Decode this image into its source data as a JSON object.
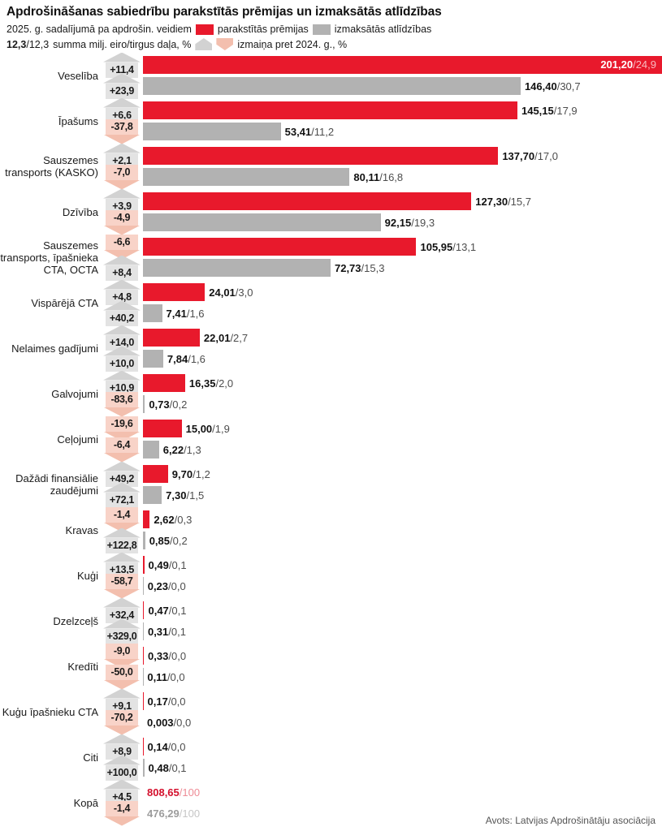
{
  "header": {
    "title": "Apdrošināšanas sabiedrību parakstītās prēmijas un izmaksātās atlīdzības",
    "subtitle": "2025. g. sadalījumā pa apdrošin. veidiem",
    "legend_premiums": "parakstītās prēmijas",
    "legend_claims": "izmaksātās atlīdzības",
    "key_bold": "12,3",
    "key_rest": "/12,3",
    "key_label": "summa milj. eiro/tirgus daļa, %",
    "change_label": "izmaiņa pret 2024. g., %"
  },
  "footer": {
    "source": "Avots: Latvijas Apdrošinātāju asociācija"
  },
  "colors": {
    "premium": "#e8192c",
    "claim": "#b2b2b2",
    "badge_up": "#e3e3e3",
    "badge_up_head": "#d2d2d2",
    "badge_down": "#f8d3c8",
    "badge_down_head": "#f3bfae",
    "total_red": "#d40f2c",
    "total_red_light": "#ee8c96",
    "total_gray": "#9c9c9c",
    "total_gray_light": "#c6c6c6"
  },
  "chart_data": {
    "type": "bar",
    "orientation": "horizontal",
    "title": "Apdrošināšanas sabiedrību parakstītās prēmijas un izmaksātās atlīdzības",
    "subtitle": "2025. g. sadalījumā pa apdrošin. veidiem",
    "unit": "summa milj. eiro / tirgus daļa %, izmaiņa pret 2024. g. %",
    "series_names": [
      "parakstītās prēmijas",
      "izmaksātās atlīdzības"
    ],
    "legend_position": "top",
    "grid": false,
    "max_value": 201.2,
    "source": "Avots: Latvijas Apdrošinātāju asociācija",
    "groups": [
      {
        "category": "Veselība",
        "rows": [
          {
            "series": "premiums",
            "change": "+11,4",
            "direction": "up",
            "value": 201.2,
            "amount": "201,20",
            "share": "24,9",
            "inside": true
          },
          {
            "series": "claims",
            "change": "+23,9",
            "direction": "up",
            "value": 146.4,
            "amount": "146,40",
            "share": "30,7"
          }
        ]
      },
      {
        "category": "Īpašums",
        "rows": [
          {
            "series": "premiums",
            "change": "+6,6",
            "direction": "up",
            "value": 145.15,
            "amount": "145,15",
            "share": "17,9"
          },
          {
            "series": "claims",
            "change": "-37,8",
            "direction": "down",
            "value": 53.41,
            "amount": "53,41",
            "share": "11,2"
          }
        ]
      },
      {
        "category": "Sauszemes transports (KASKO)",
        "rows": [
          {
            "series": "premiums",
            "change": "+2,1",
            "direction": "up",
            "value": 137.7,
            "amount": "137,70",
            "share": "17,0"
          },
          {
            "series": "claims",
            "change": "-7,0",
            "direction": "down",
            "value": 80.11,
            "amount": "80,11",
            "share": "16,8"
          }
        ]
      },
      {
        "category": "Dzīvība",
        "rows": [
          {
            "series": "premiums",
            "change": "+3,9",
            "direction": "up",
            "value": 127.3,
            "amount": "127,30",
            "share": "15,7"
          },
          {
            "series": "claims",
            "change": "-4,9",
            "direction": "down",
            "value": 92.15,
            "amount": "92,15",
            "share": "19,3"
          }
        ]
      },
      {
        "category": "Sauszemes transports, īpašnieka CTA, OCTA",
        "rows": [
          {
            "series": "premiums",
            "change": "-6,6",
            "direction": "down",
            "value": 105.95,
            "amount": "105,95",
            "share": "13,1"
          },
          {
            "series": "claims",
            "change": "+8,4",
            "direction": "up",
            "value": 72.73,
            "amount": "72,73",
            "share": "15,3"
          }
        ]
      },
      {
        "category": "Vispārējā CTA",
        "rows": [
          {
            "series": "premiums",
            "change": "+4,8",
            "direction": "up",
            "value": 24.01,
            "amount": "24,01",
            "share": "3,0"
          },
          {
            "series": "claims",
            "change": "+40,2",
            "direction": "up",
            "value": 7.41,
            "amount": "7,41",
            "share": "1,6"
          }
        ]
      },
      {
        "category": "Nelaimes gadījumi",
        "rows": [
          {
            "series": "premiums",
            "change": "+14,0",
            "direction": "up",
            "value": 22.01,
            "amount": "22,01",
            "share": "2,7"
          },
          {
            "series": "claims",
            "change": "+10,0",
            "direction": "up",
            "value": 7.84,
            "amount": "7,84",
            "share": "1,6"
          }
        ]
      },
      {
        "category": "Galvojumi",
        "rows": [
          {
            "series": "premiums",
            "change": "+10,9",
            "direction": "up",
            "value": 16.35,
            "amount": "16,35",
            "share": "2,0"
          },
          {
            "series": "claims",
            "change": "-83,6",
            "direction": "down",
            "value": 0.73,
            "amount": "0,73",
            "share": "0,2"
          }
        ]
      },
      {
        "category": "Ceļojumi",
        "rows": [
          {
            "series": "premiums",
            "change": "-19,6",
            "direction": "down",
            "value": 15.0,
            "amount": "15,00",
            "share": "1,9"
          },
          {
            "series": "claims",
            "change": "-6,4",
            "direction": "down",
            "value": 6.22,
            "amount": "6,22",
            "share": "1,3"
          }
        ]
      },
      {
        "category": "Dažādi finansiālie zaudējumi",
        "rows": [
          {
            "series": "premiums",
            "change": "+49,2",
            "direction": "up",
            "value": 9.7,
            "amount": "9,70",
            "share": "1,2"
          },
          {
            "series": "claims",
            "change": "+72,1",
            "direction": "up",
            "value": 7.3,
            "amount": "7,30",
            "share": "1,5"
          }
        ]
      },
      {
        "category": "Kravas",
        "rows": [
          {
            "series": "premiums",
            "change": "-1,4",
            "direction": "down",
            "value": 2.62,
            "amount": "2,62",
            "share": "0,3"
          },
          {
            "series": "claims",
            "change": "+122,8",
            "direction": "up",
            "value": 0.85,
            "amount": "0,85",
            "share": "0,2"
          }
        ]
      },
      {
        "category": "Kuģi",
        "rows": [
          {
            "series": "premiums",
            "change": "+13,5",
            "direction": "up",
            "value": 0.49,
            "amount": "0,49",
            "share": "0,1"
          },
          {
            "series": "claims",
            "change": "-58,7",
            "direction": "down",
            "value": 0.23,
            "amount": "0,23",
            "share": "0,0"
          }
        ]
      },
      {
        "category": "Dzelzceļš",
        "rows": [
          {
            "series": "premiums",
            "change": "+32,4",
            "direction": "up",
            "value": 0.47,
            "amount": "0,47",
            "share": "0,1"
          },
          {
            "series": "claims",
            "change": "+329,0",
            "direction": "up",
            "value": 0.31,
            "amount": "0,31",
            "share": "0,1"
          }
        ]
      },
      {
        "category": "Kredīti",
        "rows": [
          {
            "series": "premiums",
            "change": "-9,0",
            "direction": "down",
            "value": 0.33,
            "amount": "0,33",
            "share": "0,0"
          },
          {
            "series": "claims",
            "change": "-50,0",
            "direction": "down",
            "value": 0.11,
            "amount": "0,11",
            "share": "0,0"
          }
        ]
      },
      {
        "category": "Kuģu īpašnieku CTA",
        "rows": [
          {
            "series": "premiums",
            "change": "+9,1",
            "direction": "up",
            "value": 0.17,
            "amount": "0,17",
            "share": "0,0"
          },
          {
            "series": "claims",
            "change": "-70,2",
            "direction": "down",
            "value": 0.003,
            "amount": "0,003",
            "share": "0,0"
          }
        ]
      },
      {
        "category": "Citi",
        "rows": [
          {
            "series": "premiums",
            "change": "+8,9",
            "direction": "up",
            "value": 0.14,
            "amount": "0,14",
            "share": "0,0"
          },
          {
            "series": "claims",
            "change": "+100,0",
            "direction": "up",
            "value": 0.48,
            "amount": "0,48",
            "share": "0,1"
          }
        ]
      },
      {
        "category": "Kopā",
        "rows": [
          {
            "series": "premiums",
            "change": "+4,5",
            "direction": "up",
            "value": 808.65,
            "amount": "808,65",
            "share": "100",
            "no_bar": true,
            "text": "red"
          },
          {
            "series": "claims",
            "change": "-1,4",
            "direction": "down",
            "value": 476.29,
            "amount": "476,29",
            "share": "100",
            "no_bar": true,
            "text": "gray"
          }
        ]
      }
    ]
  }
}
